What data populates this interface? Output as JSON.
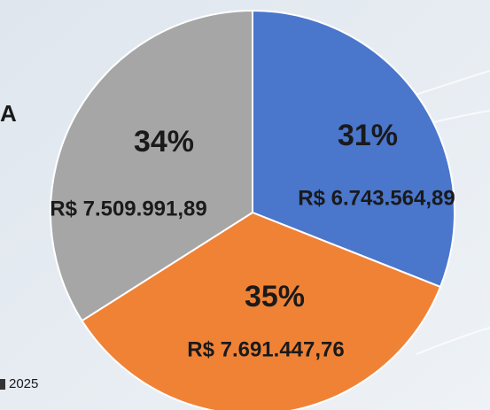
{
  "chart_data": {
    "type": "pie",
    "categories": [
      null,
      null,
      null
    ],
    "values": [
      31,
      35,
      34
    ],
    "value_labels": [
      "31%",
      "35%",
      "34%"
    ],
    "amount_labels": [
      "R$ 6.743.564,89",
      "R$ 7.691.447,76",
      "R$ 7.509.991,89"
    ],
    "colors": [
      "#4a76cc",
      "#f08236",
      "#a6a6a6"
    ],
    "side_text": "A",
    "footer": "2025"
  }
}
